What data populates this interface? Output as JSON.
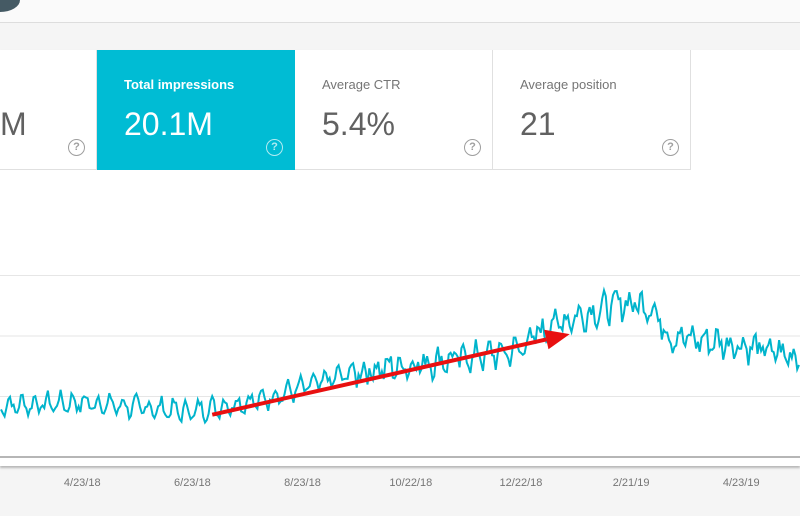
{
  "metrics": [
    {
      "label": "",
      "value": "M",
      "help_icon": "?"
    },
    {
      "label": "Total impressions",
      "value": "20.1M",
      "help_icon": "?"
    },
    {
      "label": "Average CTR",
      "value": "5.4%",
      "help_icon": "?"
    },
    {
      "label": "Average position",
      "value": "21",
      "help_icon": "?"
    }
  ],
  "colors": {
    "accent": "#00bcd4",
    "line": "#00b4cc",
    "arrow": "#e81010"
  },
  "chart_data": {
    "type": "line",
    "series_name": "Total impressions",
    "x_ticks": [
      "4/23/18",
      "6/23/18",
      "8/23/18",
      "10/22/18",
      "12/22/18",
      "2/21/19",
      "4/23/19"
    ],
    "x_range_days_from_4_23_18": [
      -45,
      397
    ],
    "y_range_gridlines": [
      0,
      3
    ],
    "trend_anchors_day_value": [
      [
        -45,
        0.85
      ],
      [
        0,
        0.9
      ],
      [
        60,
        0.75
      ],
      [
        100,
        0.95
      ],
      [
        150,
        1.4
      ],
      [
        200,
        1.6
      ],
      [
        240,
        1.75
      ],
      [
        260,
        2.2
      ],
      [
        300,
        2.55
      ],
      [
        315,
        2.5
      ],
      [
        325,
        2.0
      ],
      [
        365,
        1.85
      ],
      [
        397,
        1.65
      ]
    ],
    "weekly_amplitude": 0.14,
    "annotation": {
      "type": "arrow",
      "from_day_value": [
        72,
        0.7
      ],
      "to_day_value": [
        270,
        2.03
      ]
    }
  }
}
